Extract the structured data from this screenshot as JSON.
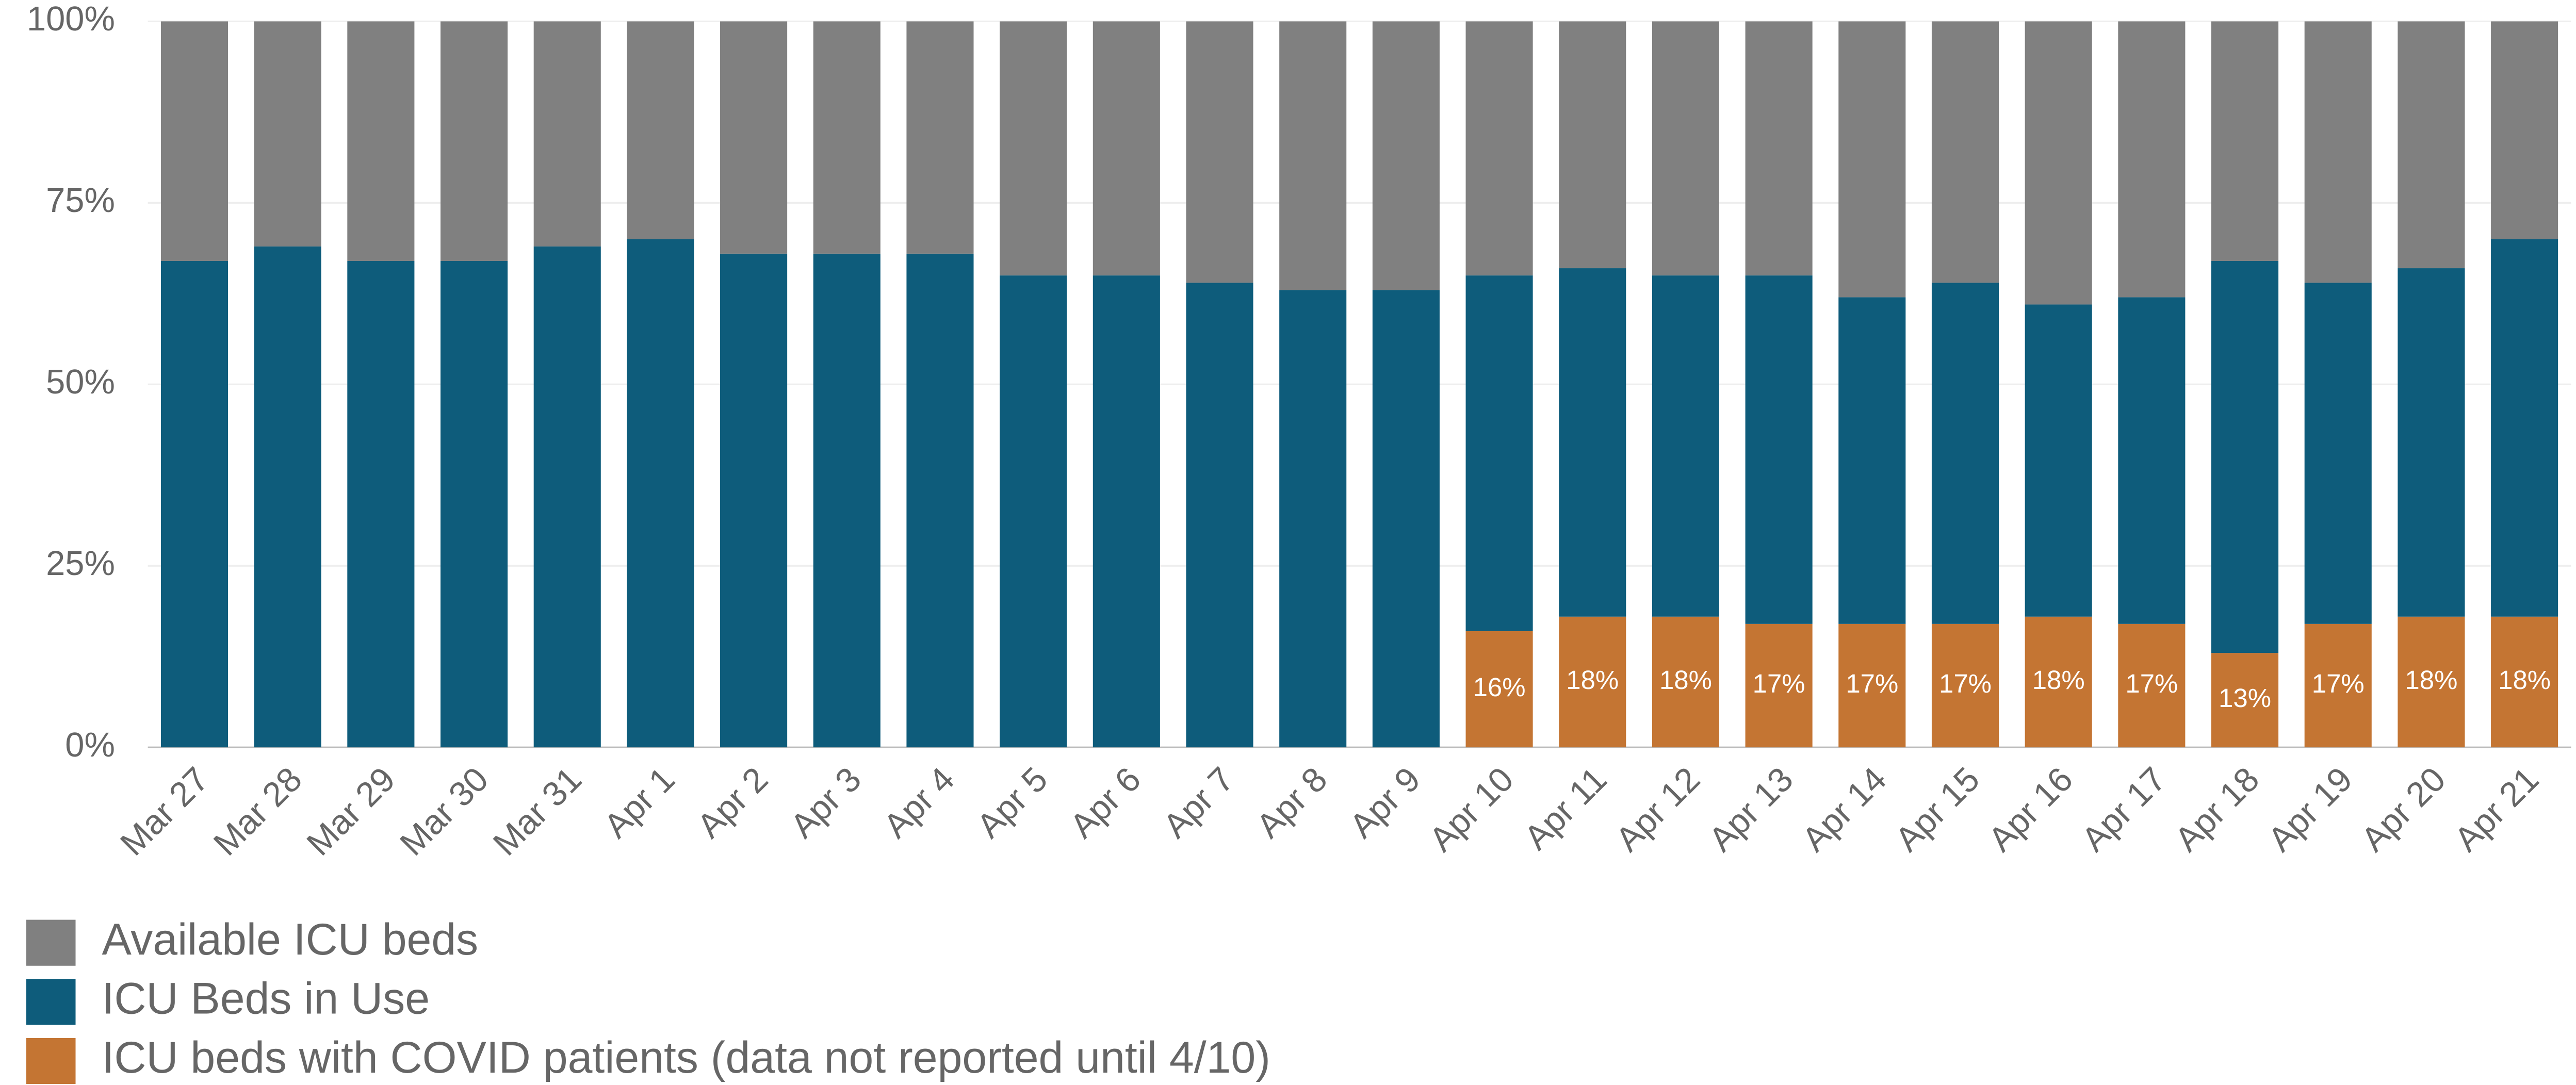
{
  "chart_data": {
    "type": "stacked_bar",
    "categories": [
      "Mar 27",
      "Mar 28",
      "Mar 29",
      "Mar 30",
      "Mar 31",
      "Apr 1",
      "Apr 2",
      "Apr 3",
      "Apr 4",
      "Apr 5",
      "Apr 6",
      "Apr 7",
      "Apr 8",
      "Apr 9",
      "Apr 10",
      "Apr 11",
      "Apr 12",
      "Apr 13",
      "Apr 14",
      "Apr 15",
      "Apr 16",
      "Apr 17",
      "Apr 18",
      "Apr 19",
      "Apr 20",
      "Apr 21"
    ],
    "series": [
      {
        "name": "ICU beds with COVID patients (data not reported until 4/10)",
        "color": "#c47533",
        "values": [
          null,
          null,
          null,
          null,
          null,
          null,
          null,
          null,
          null,
          null,
          null,
          null,
          null,
          null,
          16,
          18,
          18,
          17,
          17,
          17,
          18,
          17,
          13,
          17,
          18,
          18
        ],
        "value_labels": [
          null,
          null,
          null,
          null,
          null,
          null,
          null,
          null,
          null,
          null,
          null,
          null,
          null,
          null,
          "16%",
          "18%",
          "18%",
          "17%",
          "17%",
          "17%",
          "18%",
          "17%",
          "13%",
          "17%",
          "18%",
          "18%"
        ]
      },
      {
        "name": "ICU Beds in Use",
        "color": "#0e5c7b",
        "values": [
          67,
          69,
          67,
          67,
          69,
          70,
          68,
          68,
          68,
          65,
          65,
          64,
          63,
          63,
          49,
          48,
          47,
          48,
          45,
          47,
          43,
          45,
          54,
          47,
          48,
          52
        ]
      },
      {
        "name": "Available ICU beds",
        "color": "#808080",
        "values": [
          33,
          31,
          33,
          33,
          31,
          30,
          32,
          32,
          32,
          35,
          35,
          36,
          37,
          37,
          35,
          34,
          35,
          35,
          38,
          36,
          39,
          38,
          33,
          36,
          34,
          30
        ]
      }
    ],
    "ylim": [
      0,
      100
    ],
    "yticks": [
      {
        "value": 0,
        "label": "0%"
      },
      {
        "value": 25,
        "label": "25%"
      },
      {
        "value": 50,
        "label": "50%"
      },
      {
        "value": 75,
        "label": "75%"
      },
      {
        "value": 100,
        "label": "100%"
      }
    ],
    "grid": true
  }
}
